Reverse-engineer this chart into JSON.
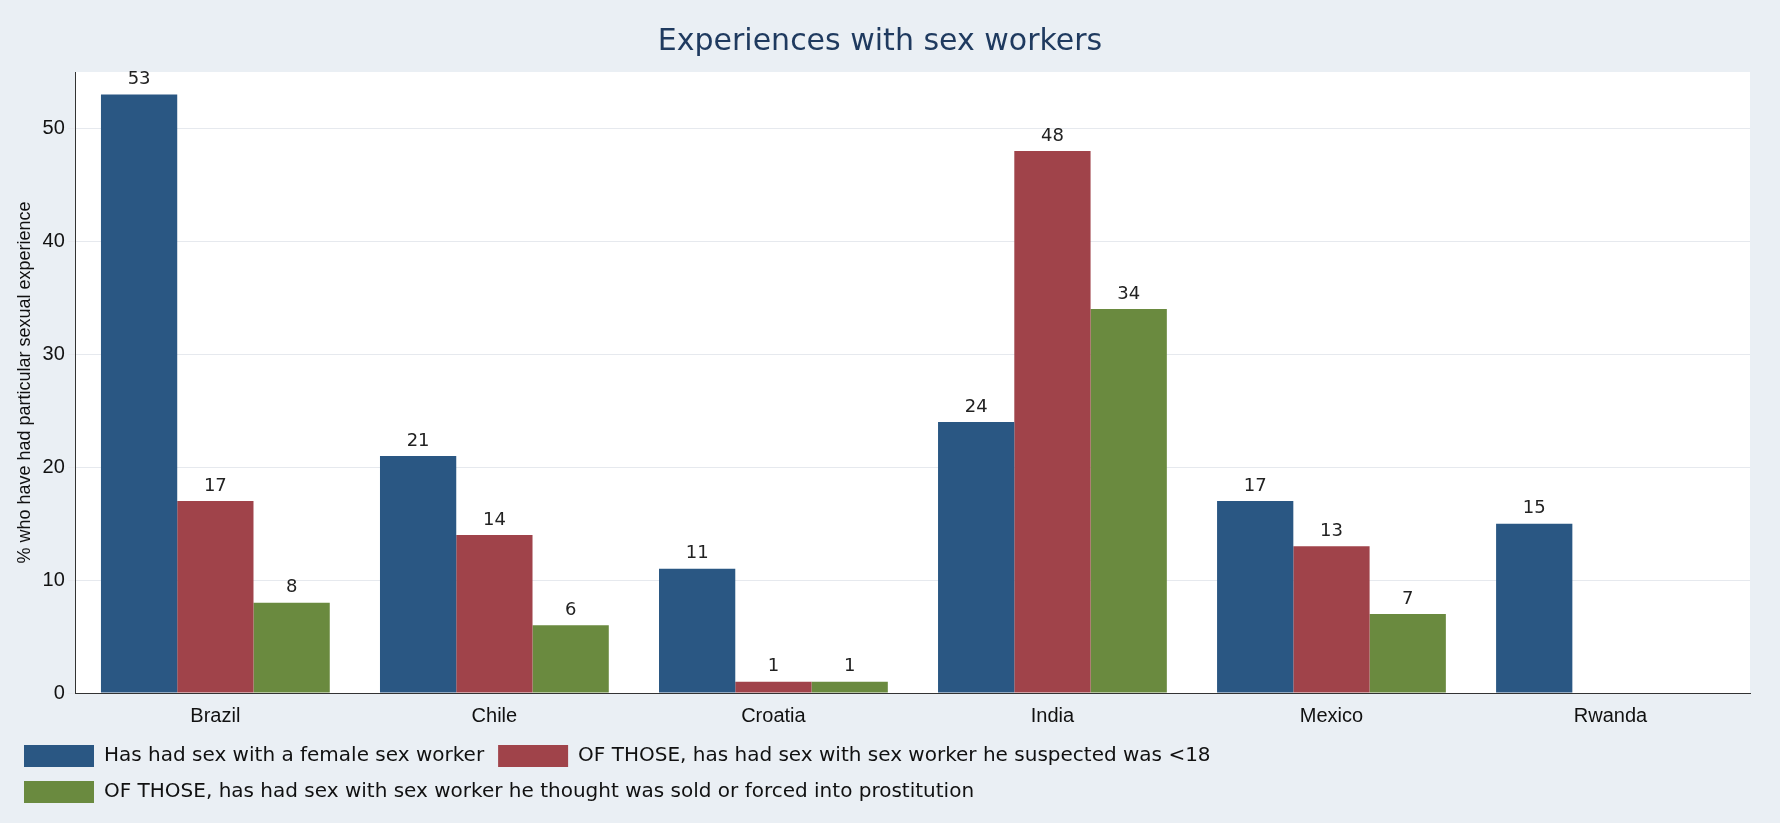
{
  "chart_data": {
    "type": "bar",
    "title": "Experiences with sex workers",
    "ylabel": "% who have had particular sexual experience",
    "categories": [
      "Brazil",
      "Chile",
      "Croatia",
      "India",
      "Mexico",
      "Rwanda"
    ],
    "series": [
      {
        "name": "Has had sex with a female sex worker",
        "color": "#2a5783",
        "values": [
          53,
          21,
          11,
          24,
          17,
          15
        ]
      },
      {
        "name": "OF THOSE, has had sex with sex worker he suspected was <18",
        "color": "#a0434a",
        "values": [
          17,
          14,
          1,
          48,
          13,
          null
        ]
      },
      {
        "name": "OF THOSE, has had sex with sex worker he thought was sold or forced into prostitution",
        "color": "#6a8a3f",
        "values": [
          8,
          6,
          1,
          34,
          7,
          null
        ]
      }
    ],
    "ylim": [
      0,
      55
    ],
    "yticks": [
      0,
      10,
      20,
      30,
      40,
      50
    ],
    "grid": "y",
    "legend": "bottom",
    "data_labels": true
  }
}
